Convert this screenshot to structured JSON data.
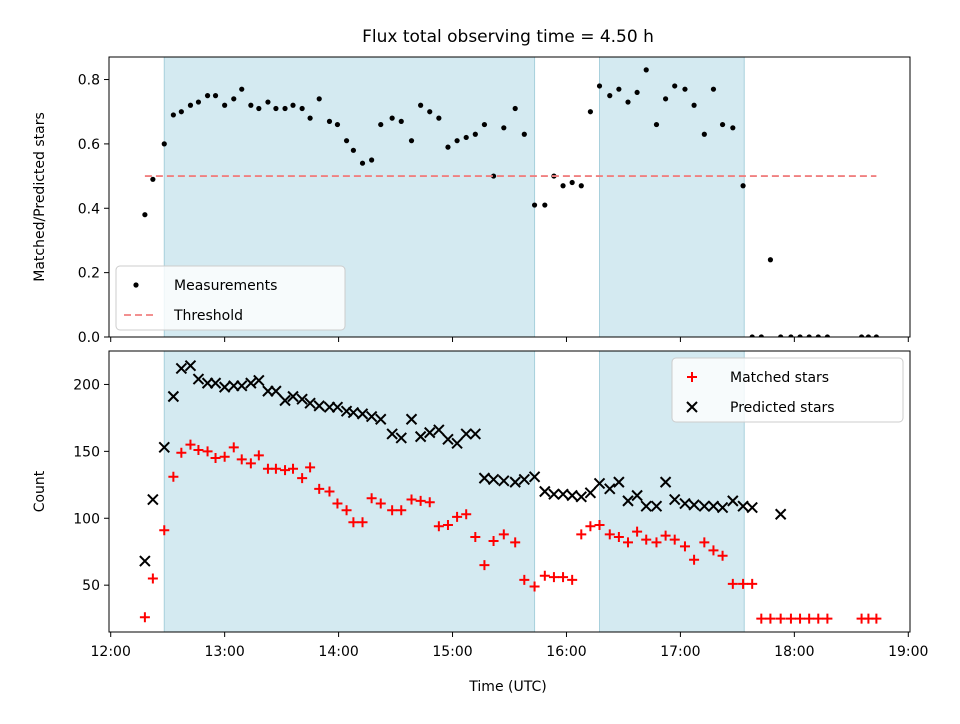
{
  "chart_data": {
    "type": "scatter",
    "title": "Flux total observing time = 4.50 h",
    "xlabel": "Time (UTC)",
    "x_unit": "hours UTC",
    "xlim": [
      11.985,
      19.015
    ],
    "x_ticks": [
      "12:00",
      "13:00",
      "14:00",
      "15:00",
      "16:00",
      "17:00",
      "18:00",
      "19:00"
    ],
    "shaded_intervals": [
      [
        12.47,
        15.72
      ],
      [
        16.29,
        17.56
      ]
    ],
    "shade_color": "#d4eaf1",
    "panels": [
      {
        "ylabel": "Matched/Predicted stars",
        "ylim": [
          0,
          0.87
        ],
        "y_ticks": [
          "0.0",
          "0.2",
          "0.4",
          "0.6",
          "0.8"
        ],
        "legend_position": "lower-left",
        "series": [
          {
            "name": "Measurements",
            "marker": "dot",
            "color": "#000000",
            "x": [
              12.3,
              12.37,
              12.47,
              12.55,
              12.62,
              12.7,
              12.77,
              12.85,
              12.92,
              13.0,
              13.08,
              13.15,
              13.23,
              13.3,
              13.38,
              13.45,
              13.53,
              13.6,
              13.68,
              13.75,
              13.83,
              13.92,
              13.99,
              14.07,
              14.13,
              14.21,
              14.29,
              14.37,
              14.47,
              14.55,
              14.64,
              14.72,
              14.8,
              14.88,
              14.96,
              15.04,
              15.12,
              15.2,
              15.28,
              15.36,
              15.45,
              15.55,
              15.63,
              15.72,
              15.81,
              15.89,
              15.97,
              16.05,
              16.13,
              16.21,
              16.29,
              16.38,
              16.46,
              16.54,
              16.62,
              16.7,
              16.79,
              16.87,
              16.95,
              17.04,
              17.12,
              17.21,
              17.29,
              17.37,
              17.46,
              17.55,
              17.63,
              17.71,
              17.79,
              17.88,
              17.97,
              18.05,
              18.13,
              18.21,
              18.29,
              18.59,
              18.65,
              18.72
            ],
            "y": [
              0.38,
              0.49,
              0.6,
              0.69,
              0.7,
              0.72,
              0.73,
              0.75,
              0.75,
              0.72,
              0.74,
              0.77,
              0.72,
              0.71,
              0.73,
              0.71,
              0.71,
              0.72,
              0.71,
              0.68,
              0.74,
              0.67,
              0.66,
              0.61,
              0.58,
              0.54,
              0.55,
              0.66,
              0.68,
              0.67,
              0.61,
              0.72,
              0.7,
              0.68,
              0.59,
              0.61,
              0.62,
              0.63,
              0.66,
              0.5,
              0.65,
              0.71,
              0.63,
              0.41,
              0.41,
              0.5,
              0.47,
              0.48,
              0.47,
              0.7,
              0.78,
              0.75,
              0.77,
              0.73,
              0.76,
              0.83,
              0.66,
              0.74,
              0.78,
              0.77,
              0.72,
              0.63,
              0.77,
              0.66,
              0.65,
              0.47,
              0.0,
              0.0,
              0.24,
              0.0,
              0.0,
              0.0,
              0.0,
              0.0,
              0.0,
              0.0,
              0.0,
              0.0
            ]
          },
          {
            "name": "Threshold",
            "style": "dashed-line",
            "color": "#f08080",
            "x": [
              12.3,
              18.72
            ],
            "y": [
              0.5,
              0.5
            ]
          }
        ]
      },
      {
        "ylabel": "Count",
        "ylim": [
          15,
          225
        ],
        "y_ticks": [
          "50",
          "100",
          "150",
          "200"
        ],
        "legend_position": "upper-right",
        "series": [
          {
            "name": "Matched stars",
            "marker": "plus",
            "color": "#ff0000",
            "x": [
              12.3,
              12.37,
              12.47,
              12.55,
              12.62,
              12.7,
              12.77,
              12.85,
              12.92,
              13.0,
              13.08,
              13.15,
              13.23,
              13.3,
              13.38,
              13.45,
              13.53,
              13.6,
              13.68,
              13.75,
              13.83,
              13.92,
              13.99,
              14.07,
              14.13,
              14.21,
              14.29,
              14.37,
              14.47,
              14.55,
              14.64,
              14.72,
              14.8,
              14.88,
              14.96,
              15.04,
              15.12,
              15.2,
              15.28,
              15.36,
              15.45,
              15.55,
              15.63,
              15.72,
              15.81,
              15.89,
              15.97,
              16.05,
              16.13,
              16.21,
              16.29,
              16.38,
              16.46,
              16.54,
              16.62,
              16.7,
              16.79,
              16.87,
              16.95,
              17.04,
              17.12,
              17.21,
              17.29,
              17.37,
              17.46,
              17.55,
              17.63,
              17.71,
              17.79,
              17.88,
              17.97,
              18.05,
              18.13,
              18.21,
              18.29,
              18.59,
              18.65,
              18.72
            ],
            "y": [
              26,
              55,
              91,
              131,
              149,
              155,
              151,
              150,
              145,
              146,
              153,
              144,
              141,
              147,
              137,
              137,
              136,
              137,
              130,
              138,
              122,
              120,
              111,
              106,
              97,
              97,
              115,
              111,
              106,
              106,
              114,
              113,
              112,
              94,
              95,
              101,
              103,
              86,
              65,
              83,
              88,
              82,
              54,
              49,
              57,
              56,
              56,
              54,
              88,
              94,
              95,
              88,
              86,
              82,
              90,
              84,
              82,
              87,
              84,
              79,
              69,
              82,
              76,
              72,
              51,
              51,
              51,
              25,
              25,
              25,
              25,
              25,
              25,
              25,
              25,
              25,
              25,
              25
            ]
          },
          {
            "name": "Predicted stars",
            "marker": "x",
            "color": "#000000",
            "x": [
              12.3,
              12.37,
              12.47,
              12.55,
              12.62,
              12.7,
              12.77,
              12.85,
              12.92,
              13.0,
              13.08,
              13.15,
              13.23,
              13.3,
              13.38,
              13.45,
              13.53,
              13.6,
              13.68,
              13.75,
              13.83,
              13.92,
              13.99,
              14.07,
              14.13,
              14.21,
              14.29,
              14.37,
              14.47,
              14.55,
              14.64,
              14.72,
              14.8,
              14.88,
              14.96,
              15.04,
              15.12,
              15.2,
              15.28,
              15.36,
              15.45,
              15.55,
              15.63,
              15.72,
              15.81,
              15.89,
              15.97,
              16.05,
              16.13,
              16.21,
              16.29,
              16.38,
              16.46,
              16.54,
              16.62,
              16.7,
              16.79,
              16.87,
              16.95,
              17.04,
              17.12,
              17.21,
              17.29,
              17.37,
              17.46,
              17.55,
              17.63,
              17.88
            ],
            "y": [
              68,
              114,
              153,
              191,
              212,
              214,
              204,
              201,
              201,
              198,
              199,
              199,
              201,
              203,
              195,
              195,
              188,
              191,
              189,
              186,
              184,
              183,
              183,
              180,
              179,
              178,
              176,
              174,
              163,
              160,
              174,
              161,
              164,
              166,
              159,
              156,
              163,
              163,
              130,
              129,
              128,
              127,
              129,
              131,
              120,
              118,
              118,
              117,
              116,
              119,
              126,
              122,
              127,
              113,
              117,
              109,
              109,
              127,
              114,
              111,
              110,
              109,
              109,
              108,
              113,
              109,
              108,
              103
            ]
          }
        ]
      }
    ]
  }
}
